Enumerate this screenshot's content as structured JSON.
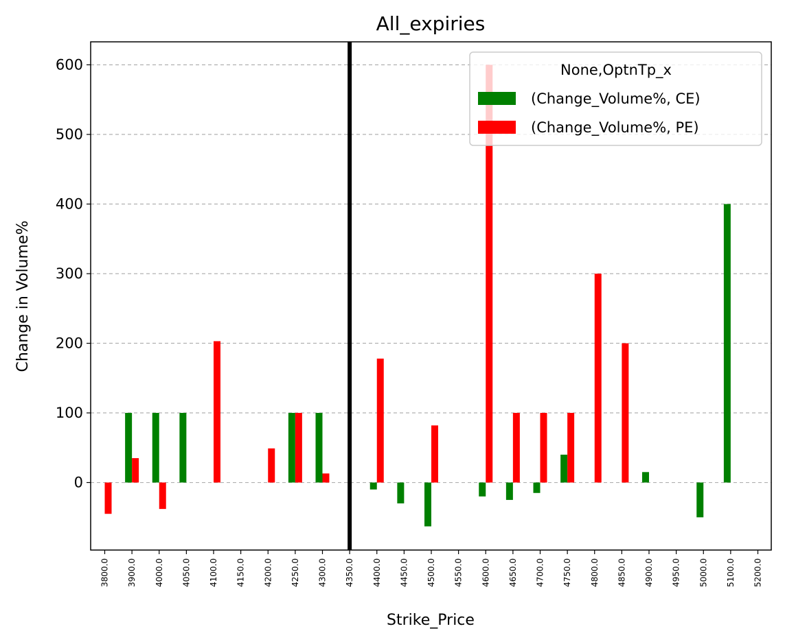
{
  "chart_data": {
    "type": "bar",
    "title": "All_expiries",
    "xlabel": "Strike_Price",
    "ylabel": "Change in Volume%",
    "categories": [
      "3800.0",
      "3900.0",
      "4000.0",
      "4050.0",
      "4100.0",
      "4150.0",
      "4200.0",
      "4250.0",
      "4300.0",
      "4350.0",
      "4400.0",
      "4450.0",
      "4500.0",
      "4550.0",
      "4600.0",
      "4650.0",
      "4700.0",
      "4750.0",
      "4800.0",
      "4850.0",
      "4900.0",
      "4950.0",
      "5000.0",
      "5100.0",
      "5200.0"
    ],
    "series": [
      {
        "name": "(Change_Volume%, CE)",
        "color": "#008000",
        "values": [
          null,
          100,
          100,
          100,
          null,
          null,
          null,
          100,
          100,
          null,
          -10,
          -30,
          -63,
          null,
          -20,
          -25,
          -15,
          40,
          null,
          null,
          15,
          null,
          -50,
          400,
          null
        ]
      },
      {
        "name": "(Change_Volume%, PE)",
        "color": "#ff0000",
        "values": [
          -45,
          35,
          -38,
          null,
          203,
          null,
          49,
          100,
          13,
          null,
          178,
          null,
          82,
          null,
          600,
          100,
          100,
          100,
          300,
          200,
          null,
          null,
          null,
          null,
          null
        ]
      }
    ],
    "yticks": [
      0,
      100,
      200,
      300,
      400,
      500,
      600
    ],
    "ylim": [
      -97,
      633
    ],
    "grid": "horizontal dashed",
    "vline_at_category": "4350.0",
    "legend": {
      "title": "None,OptnTp_x",
      "placement": "top-right"
    }
  }
}
